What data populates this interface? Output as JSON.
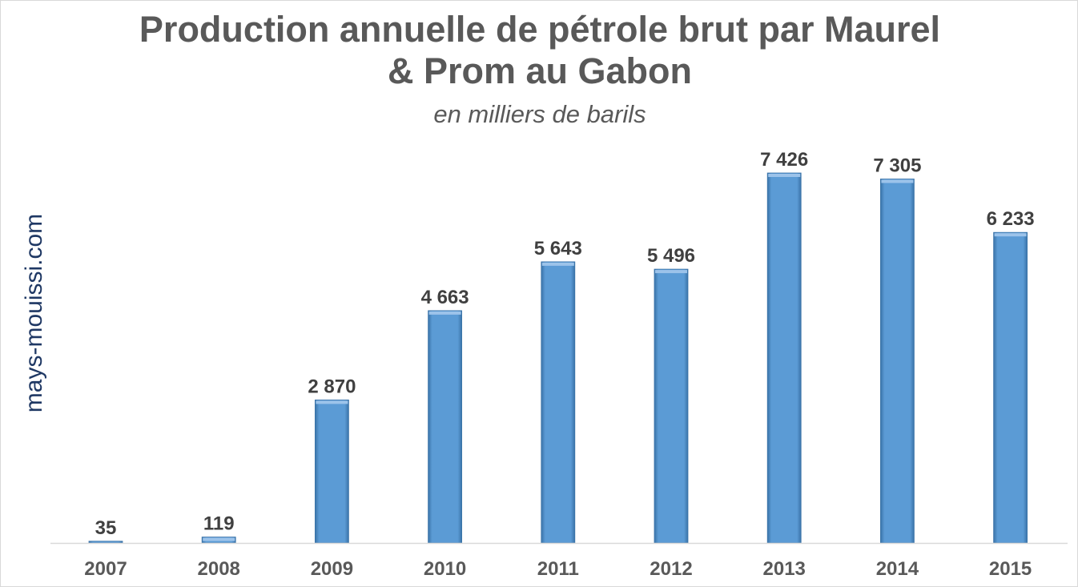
{
  "chart_data": {
    "type": "bar",
    "title_line1": "Production annuelle de pétrole brut par Maurel",
    "title_line2": "& Prom au Gabon",
    "subtitle": "en milliers de barils",
    "watermark": "mays-mouissi.com",
    "categories": [
      "2007",
      "2008",
      "2009",
      "2010",
      "2011",
      "2012",
      "2013",
      "2014",
      "2015"
    ],
    "values": [
      35,
      119,
      2870,
      4663,
      5643,
      5496,
      7426,
      7305,
      6233
    ],
    "value_labels": [
      "35",
      "119",
      "2 870",
      "4 663",
      "5 643",
      "5 496",
      "7 426",
      "7 305",
      "6 233"
    ],
    "ylim": [
      0,
      7426
    ],
    "grid": false,
    "legend": "none",
    "colors": {
      "bar": "#5b9bd5",
      "bar_dark": "#3a73a8",
      "bar_light": "#9cc3ea",
      "text": "#595959",
      "label": "#404040",
      "watermark": "#1f3864",
      "axis": "#d9d9d9"
    }
  }
}
